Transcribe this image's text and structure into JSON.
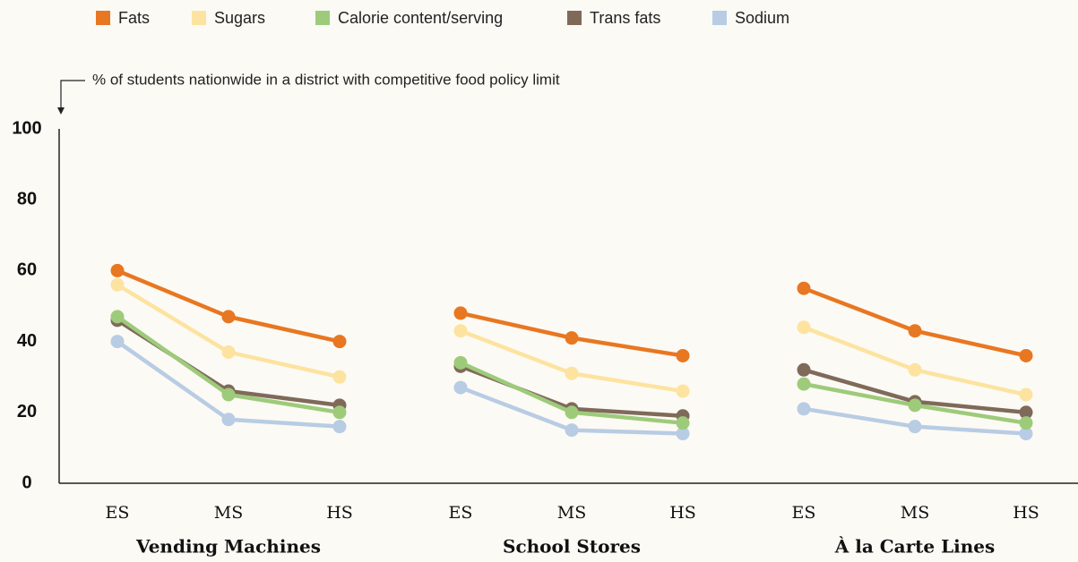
{
  "chart_data": {
    "type": "line",
    "y_label": "% of students nationwide in a district with competitive food policy limit",
    "groups": [
      {
        "name": "Vending Machines",
        "categories": [
          "ES",
          "MS",
          "HS"
        ]
      },
      {
        "name": "School Stores",
        "categories": [
          "ES",
          "MS",
          "HS"
        ]
      },
      {
        "name": "À la Carte Lines",
        "categories": [
          "ES",
          "MS",
          "HS"
        ]
      }
    ],
    "series": [
      {
        "name": "Fats",
        "color": "#e87722",
        "values": [
          [
            60,
            47,
            40
          ],
          [
            48,
            41,
            36
          ],
          [
            55,
            43,
            36
          ]
        ]
      },
      {
        "name": "Sugars",
        "color": "#fde3a0",
        "values": [
          [
            56,
            37,
            30
          ],
          [
            43,
            31,
            26
          ],
          [
            44,
            32,
            25
          ]
        ]
      },
      {
        "name": "Calorie content/serving",
        "color": "#9dcb7a",
        "values": [
          [
            47,
            25,
            20
          ],
          [
            34,
            20,
            17
          ],
          [
            28,
            22,
            17
          ]
        ]
      },
      {
        "name": "Trans fats",
        "color": "#7f6a5a",
        "values": [
          [
            46,
            26,
            22
          ],
          [
            33,
            21,
            19
          ],
          [
            32,
            23,
            20
          ]
        ]
      },
      {
        "name": "Sodium",
        "color": "#b8cce4",
        "values": [
          [
            40,
            18,
            16
          ],
          [
            27,
            15,
            14
          ],
          [
            21,
            16,
            14
          ]
        ]
      }
    ],
    "ylim": [
      0,
      100
    ],
    "yticks": [
      0,
      20,
      40,
      60,
      80,
      100
    ]
  }
}
